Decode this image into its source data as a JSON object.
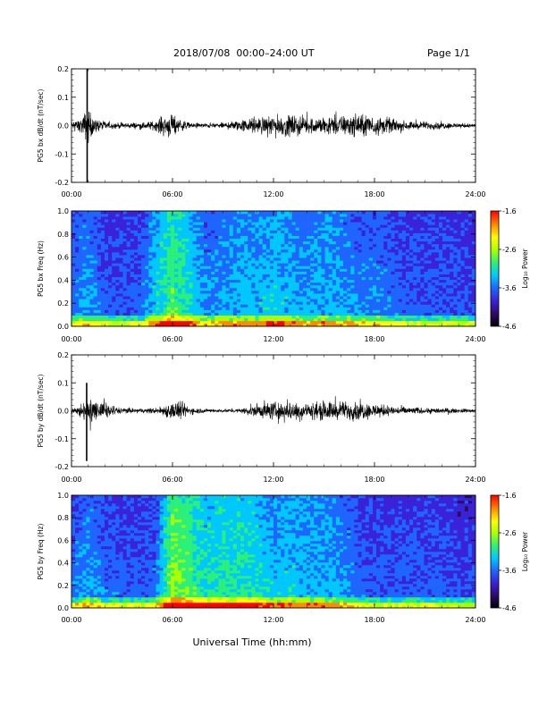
{
  "header": {
    "title": "2018/07/08  00:00–24:00 UT",
    "page": "Page 1/1"
  },
  "colors": {
    "trace": "#000000",
    "spectrogram_background": "#2a0f52",
    "colormap": [
      "#000000",
      "#2d0a6a",
      "#3a22d8",
      "#1f66ff",
      "#00c8ff",
      "#2bf07a",
      "#aaff00",
      "#ffff00",
      "#ff8a00",
      "#ff0000"
    ]
  },
  "x_axis": {
    "label": "Universal Time (hh:mm)",
    "ticks": [
      "00:00",
      "06:00",
      "12:00",
      "18:00",
      "24:00"
    ],
    "range_hours": [
      0,
      24
    ]
  },
  "chart_data": [
    {
      "type": "line",
      "ylabel": "PG5 bx dB/dt (nT/sec)",
      "ylim": [
        -0.2,
        0.2
      ],
      "yticks": [
        "0.2",
        "0.1",
        "0.0",
        "-0.1",
        "-0.2"
      ],
      "xlim_hours": [
        0,
        24
      ],
      "envelope": {
        "x_hours": [
          0,
          0.5,
          1.0,
          1.2,
          1.5,
          2.5,
          4.0,
          5.0,
          5.5,
          6.0,
          6.5,
          7.0,
          8.0,
          9.0,
          10.0,
          11.0,
          12.0,
          13.0,
          14.0,
          15.0,
          16.0,
          17.0,
          17.5,
          18.0,
          19.0,
          20.0,
          21.0,
          22.0,
          23.0,
          24.0
        ],
        "amplitude": [
          0.02,
          0.03,
          0.09,
          0.05,
          0.03,
          0.015,
          0.015,
          0.025,
          0.055,
          0.06,
          0.03,
          0.015,
          0.012,
          0.015,
          0.03,
          0.04,
          0.05,
          0.055,
          0.04,
          0.045,
          0.05,
          0.055,
          0.06,
          0.05,
          0.035,
          0.02,
          0.02,
          0.018,
          0.012,
          0.01
        ]
      },
      "spikes": [
        {
          "x_hours": 0.93,
          "max": 0.21,
          "min": -0.21
        }
      ]
    },
    {
      "type": "heatmap",
      "ylabel": "PG5 bx Freq (Hz)",
      "ylim": [
        0,
        1.0
      ],
      "yticks": [
        "1.0",
        "0.8",
        "0.6",
        "0.4",
        "0.2",
        "0.0"
      ],
      "xlim_hours": [
        0,
        24
      ],
      "colorbar": {
        "label": "Log₁₀ Power",
        "range": [
          -4.6,
          -1.6
        ],
        "ticks": [
          "-1.6",
          "-2.6",
          "-3.6",
          "-4.6"
        ]
      },
      "activity": {
        "x_hours": [
          0,
          1,
          2,
          3,
          4,
          5,
          6,
          7,
          8,
          9,
          10,
          11,
          12,
          13,
          14,
          15,
          16,
          17,
          18,
          19,
          20,
          21,
          22,
          23,
          24
        ],
        "level": [
          0.35,
          0.45,
          0.3,
          0.3,
          0.3,
          0.55,
          0.75,
          0.6,
          0.4,
          0.45,
          0.5,
          0.5,
          0.55,
          0.5,
          0.45,
          0.5,
          0.45,
          0.4,
          0.4,
          0.35,
          0.3,
          0.3,
          0.3,
          0.3,
          0.25
        ]
      }
    },
    {
      "type": "line",
      "ylabel": "PG5 by dB/dt (nT/sec)",
      "ylim": [
        -0.2,
        0.2
      ],
      "yticks": [
        "0.2",
        "0.1",
        "0.0",
        "-0.1",
        "-0.2"
      ],
      "xlim_hours": [
        0,
        24
      ],
      "envelope": {
        "x_hours": [
          0,
          0.5,
          1.0,
          1.5,
          2.0,
          3.0,
          4.0,
          5.0,
          6.0,
          6.5,
          7.0,
          8.0,
          9.0,
          10.0,
          11.0,
          12.0,
          13.0,
          14.0,
          15.0,
          16.0,
          17.0,
          18.0,
          19.0,
          20.0,
          21.0,
          22.0,
          23.0,
          24.0
        ],
        "amplitude": [
          0.02,
          0.03,
          0.06,
          0.045,
          0.04,
          0.015,
          0.012,
          0.015,
          0.045,
          0.05,
          0.02,
          0.01,
          0.008,
          0.01,
          0.035,
          0.045,
          0.05,
          0.045,
          0.05,
          0.045,
          0.05,
          0.035,
          0.025,
          0.02,
          0.015,
          0.015,
          0.01,
          0.01
        ]
      },
      "spikes": [
        {
          "x_hours": 0.9,
          "max": 0.1,
          "min": -0.18
        }
      ]
    },
    {
      "type": "heatmap",
      "ylabel": "PG5 by Freq (Hz)",
      "ylim": [
        0,
        1.0
      ],
      "yticks": [
        "1.0",
        "0.8",
        "0.6",
        "0.4",
        "0.2",
        "0.0"
      ],
      "xlim_hours": [
        0,
        24
      ],
      "colorbar": {
        "label": "Log₁₀ Power",
        "range": [
          -4.6,
          -1.6
        ],
        "ticks": [
          "-1.6",
          "-2.6",
          "-3.6",
          "-4.6"
        ]
      },
      "activity": {
        "x_hours": [
          0,
          1,
          2,
          3,
          4,
          5,
          6,
          7,
          8,
          9,
          10,
          11,
          12,
          13,
          14,
          15,
          16,
          17,
          18,
          19,
          20,
          21,
          22,
          23,
          24
        ],
        "level": [
          0.35,
          0.45,
          0.35,
          0.3,
          0.3,
          0.35,
          0.85,
          0.75,
          0.6,
          0.65,
          0.65,
          0.6,
          0.5,
          0.55,
          0.5,
          0.5,
          0.45,
          0.35,
          0.3,
          0.3,
          0.3,
          0.3,
          0.3,
          0.25,
          0.25
        ]
      }
    }
  ]
}
